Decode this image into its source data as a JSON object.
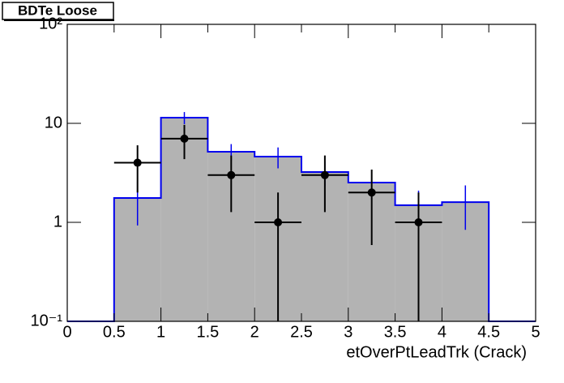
{
  "chart_data": {
    "type": "histogram",
    "title": "BDTe Loose",
    "x_label": "etOverPtLeadTrk (Crack)",
    "bins": [
      0,
      0.5,
      1,
      1.5,
      2,
      2.5,
      3,
      3.5,
      4,
      4.5,
      5
    ],
    "histogram": {
      "values": [
        0,
        1.76,
        11.4,
        5.17,
        4.61,
        3.22,
        2.52,
        1.49,
        1.6,
        0
      ],
      "errors": [
        0,
        0.83,
        1.6,
        1.0,
        1.1,
        0.9,
        0.8,
        0.6,
        0.76,
        0
      ],
      "fill": "#b3b3b3",
      "color": "#0000ee"
    },
    "points": {
      "x": [
        0.75,
        1.25,
        1.75,
        2.25,
        2.75,
        3.25,
        3.75
      ],
      "values": [
        4,
        7,
        3,
        1,
        3,
        2,
        1
      ],
      "errors": [
        2,
        2.65,
        1.73,
        1,
        1.73,
        1.41,
        1
      ],
      "x_error": 0.25,
      "color": "#000000"
    },
    "xlim": [
      0,
      5
    ],
    "xticks": [
      0,
      0.5,
      1,
      1.5,
      2,
      2.5,
      3,
      3.5,
      4,
      4.5,
      5
    ],
    "ylim": [
      0.1,
      100
    ],
    "log_y": true,
    "yticks": [
      {
        "value": 0.1,
        "label": "10⁻¹"
      },
      1,
      10,
      {
        "value": 100,
        "label": "10²"
      }
    ]
  }
}
